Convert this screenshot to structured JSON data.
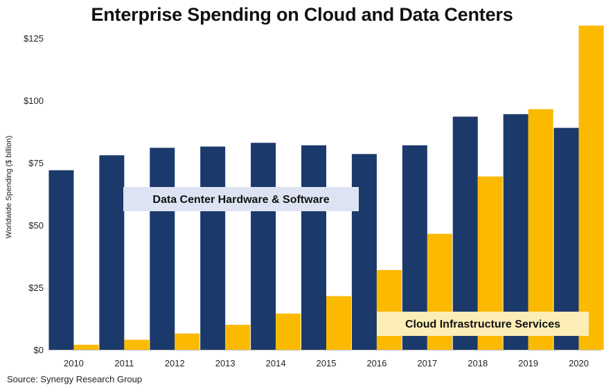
{
  "colors": {
    "data_center": "#1b3a6b",
    "cloud": "#fbb900",
    "data_center_label_bg": "#dde3f2",
    "cloud_label_bg": "#fdeeb8"
  },
  "chart_data": {
    "type": "bar",
    "title": "Enterprise Spending on Cloud and Data Centers",
    "ylabel": "Worldwide Spending ($ billion)",
    "xlabel": "",
    "ylim": [
      0,
      130
    ],
    "yticks": [
      0,
      25,
      50,
      75,
      100,
      125
    ],
    "ytick_labels": [
      "$0",
      "$25",
      "$50",
      "$75",
      "$100",
      "$125"
    ],
    "categories": [
      "2010",
      "2011",
      "2012",
      "2013",
      "2014",
      "2015",
      "2016",
      "2017",
      "2018",
      "2019",
      "2020"
    ],
    "series": [
      {
        "name": "Data Center Hardware & Software",
        "values": [
          72,
          78,
          81,
          81.5,
          83,
          82,
          78.5,
          82,
          93.5,
          94.5,
          89
        ]
      },
      {
        "name": "Cloud Infrastructure Services",
        "values": [
          2,
          4,
          6.5,
          10,
          14.5,
          21.5,
          32,
          46.5,
          69.5,
          96.5,
          130
        ]
      }
    ],
    "grid": false,
    "legend": "inline-callouts",
    "source": "Source: Synergy Research Group"
  }
}
